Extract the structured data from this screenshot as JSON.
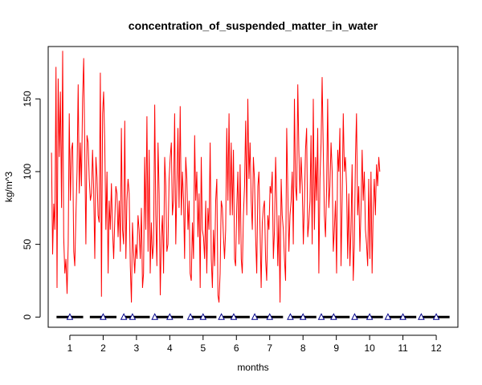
{
  "chart_data": {
    "type": "line",
    "title": "concentration_of_suspended_matter_in_water",
    "xlabel": "months",
    "ylabel": "kg/m^3",
    "xlim": [
      0.35,
      12.65
    ],
    "ylim": [
      -7,
      186
    ],
    "x_ticks": [
      "1",
      "2",
      "3",
      "4",
      "5",
      "6",
      "7",
      "8",
      "9",
      "10",
      "11",
      "12"
    ],
    "y_ticks": [
      0,
      50,
      100,
      150
    ],
    "grid": false,
    "colors": {
      "concentration": "#ff0000",
      "baseline": "#000000",
      "markers": "#00008b"
    },
    "series": [
      {
        "kind": "concentration",
        "x_start": 0.45,
        "x_step": 0.0333,
        "values": [
          113,
          43,
          78,
          60,
          172,
          20,
          164,
          110,
          155,
          75,
          183,
          55,
          30,
          40,
          16,
          50,
          140,
          80,
          115,
          120,
          45,
          35,
          70,
          100,
          160,
          85,
          120,
          90,
          150,
          178,
          110,
          50,
          125,
          120,
          95,
          80,
          85,
          115,
          88,
          40,
          110,
          96,
          70,
          65,
          168,
          14,
          140,
          155,
          120,
          60,
          100,
          30,
          80,
          60,
          92,
          60,
          40,
          65,
          90,
          85,
          55,
          80,
          45,
          130,
          60,
          50,
          135,
          40,
          80,
          95,
          85,
          35,
          10,
          65,
          45,
          30,
          50,
          40,
          70,
          60,
          40,
          75,
          20,
          30,
          110,
          60,
          138,
          45,
          115,
          30,
          65,
          40,
          50,
          146,
          70,
          35,
          120,
          85,
          15,
          55,
          70,
          30,
          110,
          90,
          45,
          50,
          95,
          110,
          120,
          70,
          80,
          140,
          50,
          90,
          130,
          75,
          145,
          70,
          100,
          80,
          40,
          110,
          95,
          60,
          80,
          30,
          25,
          65,
          40,
          125,
          80,
          100,
          55,
          85,
          20,
          110,
          60,
          55,
          40,
          80,
          30,
          75,
          60,
          120,
          40,
          20,
          60,
          35,
          80,
          95,
          15,
          10,
          30,
          80,
          75,
          55,
          40,
          60,
          130,
          80,
          140,
          70,
          120,
          70,
          115,
          40,
          35,
          75,
          100,
          50,
          105,
          40,
          30,
          70,
          90,
          135,
          70,
          150,
          95,
          120,
          80,
          60,
          110,
          95,
          55,
          30,
          90,
          100,
          60,
          20,
          65,
          75,
          80,
          40,
          25,
          70,
          60,
          90,
          85,
          100,
          40,
          60,
          110,
          80,
          35,
          70,
          10,
          95,
          70,
          60,
          40,
          25,
          130,
          90,
          45,
          70,
          80,
          100,
          50,
          150,
          90,
          80,
          160,
          115,
          85,
          110,
          90,
          50,
          80,
          115,
          130,
          55,
          65,
          80,
          125,
          50,
          150,
          60,
          110,
          80,
          130,
          30,
          95,
          120,
          165,
          115,
          70,
          55,
          90,
          150,
          75,
          90,
          120,
          100,
          45,
          60,
          80,
          30,
          115,
          100,
          130,
          35,
          80,
          140,
          100,
          110,
          90,
          40,
          85,
          35,
          60,
          105,
          25,
          50,
          110,
          140,
          70,
          90,
          45,
          75,
          115,
          80,
          100,
          60,
          50,
          35,
          95,
          40,
          100,
          30,
          75,
          95,
          70,
          105,
          90,
          110,
          100
        ]
      },
      {
        "kind": "baseline",
        "segments": [
          [
            0.6,
            1.4
          ],
          [
            1.6,
            2.4
          ],
          [
            2.6,
            3.4
          ],
          [
            3.6,
            4.4
          ],
          [
            4.6,
            5.4
          ],
          [
            5.6,
            6.4
          ],
          [
            6.6,
            7.4
          ],
          [
            7.6,
            8.4
          ],
          [
            8.6,
            9.4
          ],
          [
            9.6,
            10.4
          ],
          [
            10.6,
            11.4
          ],
          [
            11.6,
            12.4
          ]
        ],
        "y": 0
      },
      {
        "kind": "markers",
        "x": [
          1.0,
          2.0,
          2.62,
          2.88,
          3.55,
          4.0,
          4.62,
          5.0,
          5.55,
          5.92,
          6.55,
          7.0,
          7.62,
          8.0,
          8.55,
          8.92,
          9.55,
          10.0,
          10.55,
          11.0,
          11.55,
          12.0
        ],
        "y": 0
      }
    ]
  }
}
